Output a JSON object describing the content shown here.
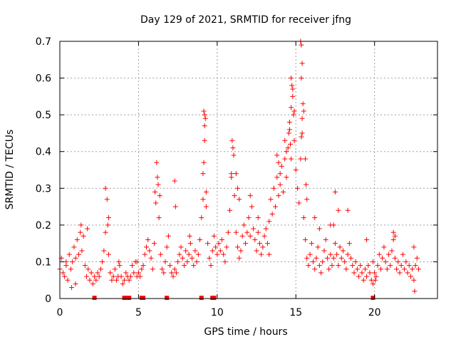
{
  "chart_data": {
    "type": "scatter",
    "title": "Day 129 of 2021, SRMTID for receiver jfng",
    "xlabel": "GPS time / hours",
    "ylabel": "SRMTID / TECUs",
    "xlim": [
      0,
      24
    ],
    "ylim": [
      0,
      0.7
    ],
    "x_ticks": [
      0,
      5,
      10,
      15,
      20
    ],
    "x_tick_labels": [
      "0",
      "5",
      "10",
      "15",
      "20"
    ],
    "y_ticks": [
      0,
      0.1,
      0.2,
      0.3,
      0.4,
      0.5,
      0.6,
      0.7
    ],
    "y_tick_labels": [
      "0",
      "0.1",
      "0.2",
      "0.3",
      "0.4",
      "0.5",
      "0.6",
      "0.7"
    ],
    "grid": true,
    "marker": "+",
    "series_color": "#ff0000",
    "x_step": 0.1,
    "series": [
      {
        "name": "SRMTID",
        "points": [
          [
            0.0,
            0.08
          ],
          [
            0.1,
            0.11
          ],
          [
            0.2,
            0.07
          ],
          [
            0.3,
            0.06
          ],
          [
            0.4,
            0.09
          ],
          [
            0.5,
            0.05
          ],
          [
            0.6,
            0.12
          ],
          [
            0.7,
            0.08
          ],
          [
            0.8,
            0.1
          ],
          [
            0.9,
            0.14
          ],
          [
            1.0,
            0.11
          ],
          [
            1.1,
            0.16
          ],
          [
            1.2,
            0.12
          ],
          [
            1.3,
            0.18
          ],
          [
            1.4,
            0.13
          ],
          [
            1.5,
            0.17
          ],
          [
            1.6,
            0.09
          ],
          [
            1.7,
            0.06
          ],
          [
            1.8,
            0.08
          ],
          [
            1.9,
            0.05
          ],
          [
            2.0,
            0.07
          ],
          [
            2.1,
            0.04
          ],
          [
            2.2,
            0.06
          ],
          [
            2.3,
            0.05
          ],
          [
            2.4,
            0.07
          ],
          [
            2.5,
            0.06
          ],
          [
            2.6,
            0.08
          ],
          [
            2.7,
            0.1
          ],
          [
            2.8,
            0.13
          ],
          [
            2.9,
            0.18
          ],
          [
            3.0,
            0.27
          ],
          [
            3.1,
            0.12
          ],
          [
            3.2,
            0.07
          ],
          [
            3.3,
            0.05
          ],
          [
            3.4,
            0.06
          ],
          [
            3.5,
            0.08
          ],
          [
            3.6,
            0.05
          ],
          [
            3.7,
            0.06
          ],
          [
            3.8,
            0.09
          ],
          [
            3.9,
            0.06
          ],
          [
            4.0,
            0.04
          ],
          [
            4.1,
            0.05
          ],
          [
            4.2,
            0.07
          ],
          [
            4.3,
            0.06
          ],
          [
            4.4,
            0.05
          ],
          [
            4.5,
            0.06
          ],
          [
            4.6,
            0.09
          ],
          [
            4.7,
            0.07
          ],
          [
            4.8,
            0.1
          ],
          [
            4.9,
            0.06
          ],
          [
            5.0,
            0.07
          ],
          [
            5.1,
            0.06
          ],
          [
            5.2,
            0.08
          ],
          [
            5.3,
            0.09
          ],
          [
            5.4,
            0.12
          ],
          [
            5.5,
            0.14
          ],
          [
            5.6,
            0.16
          ],
          [
            5.7,
            0.13
          ],
          [
            5.8,
            0.11
          ],
          [
            5.9,
            0.08
          ],
          [
            6.0,
            0.15
          ],
          [
            6.1,
            0.26
          ],
          [
            6.2,
            0.33
          ],
          [
            6.3,
            0.22
          ],
          [
            6.4,
            0.12
          ],
          [
            6.5,
            0.08
          ],
          [
            6.6,
            0.07
          ],
          [
            6.7,
            0.1
          ],
          [
            6.8,
            0.14
          ],
          [
            6.9,
            0.17
          ],
          [
            7.0,
            0.09
          ],
          [
            7.1,
            0.07
          ],
          [
            7.2,
            0.06
          ],
          [
            7.3,
            0.08
          ],
          [
            7.4,
            0.07
          ],
          [
            7.5,
            0.1
          ],
          [
            7.6,
            0.12
          ],
          [
            7.7,
            0.14
          ],
          [
            7.8,
            0.11
          ],
          [
            7.9,
            0.09
          ],
          [
            8.0,
            0.13
          ],
          [
            8.1,
            0.1
          ],
          [
            8.2,
            0.12
          ],
          [
            8.3,
            0.15
          ],
          [
            8.4,
            0.11
          ],
          [
            8.5,
            0.09
          ],
          [
            8.6,
            0.13
          ],
          [
            8.7,
            0.1
          ],
          [
            8.8,
            0.12
          ],
          [
            8.9,
            0.16
          ],
          [
            9.0,
            0.22
          ],
          [
            9.1,
            0.34
          ],
          [
            9.2,
            0.47
          ],
          [
            9.3,
            0.25
          ],
          [
            9.4,
            0.15
          ],
          [
            9.5,
            0.11
          ],
          [
            9.6,
            0.09
          ],
          [
            9.7,
            0.13
          ],
          [
            9.8,
            0.17
          ],
          [
            9.9,
            0.14
          ],
          [
            10.0,
            0.12
          ],
          [
            10.1,
            0.15
          ],
          [
            10.2,
            0.13
          ],
          [
            10.3,
            0.16
          ],
          [
            10.4,
            0.12
          ],
          [
            10.5,
            0.1
          ],
          [
            10.6,
            0.14
          ],
          [
            10.7,
            0.18
          ],
          [
            10.8,
            0.24
          ],
          [
            10.9,
            0.34
          ],
          [
            11.0,
            0.41
          ],
          [
            11.1,
            0.28
          ],
          [
            11.2,
            0.18
          ],
          [
            11.3,
            0.14
          ],
          [
            11.4,
            0.11
          ],
          [
            11.5,
            0.13
          ],
          [
            11.6,
            0.17
          ],
          [
            11.7,
            0.2
          ],
          [
            11.8,
            0.15
          ],
          [
            11.9,
            0.18
          ],
          [
            12.0,
            0.22
          ],
          [
            12.1,
            0.17
          ],
          [
            12.2,
            0.25
          ],
          [
            12.3,
            0.19
          ],
          [
            12.4,
            0.16
          ],
          [
            12.5,
            0.13
          ],
          [
            12.6,
            0.18
          ],
          [
            12.7,
            0.15
          ],
          [
            12.8,
            0.12
          ],
          [
            12.9,
            0.14
          ],
          [
            13.0,
            0.17
          ],
          [
            13.1,
            0.19
          ],
          [
            13.2,
            0.15
          ],
          [
            13.3,
            0.21
          ],
          [
            13.4,
            0.27
          ],
          [
            13.5,
            0.23
          ],
          [
            13.6,
            0.3
          ],
          [
            13.7,
            0.25
          ],
          [
            13.8,
            0.33
          ],
          [
            13.9,
            0.28
          ],
          [
            14.0,
            0.31
          ],
          [
            14.1,
            0.36
          ],
          [
            14.2,
            0.29
          ],
          [
            14.3,
            0.38
          ],
          [
            14.4,
            0.33
          ],
          [
            14.5,
            0.41
          ],
          [
            14.6,
            0.46
          ],
          [
            14.7,
            0.52
          ],
          [
            14.8,
            0.57
          ],
          [
            14.9,
            0.43
          ],
          [
            15.0,
            0.35
          ],
          [
            15.1,
            0.3
          ],
          [
            15.2,
            0.26
          ],
          [
            15.3,
            0.38
          ],
          [
            15.4,
            0.45
          ],
          [
            15.5,
            0.22
          ],
          [
            15.6,
            0.16
          ],
          [
            15.7,
            0.11
          ],
          [
            15.8,
            0.09
          ],
          [
            15.9,
            0.12
          ],
          [
            16.0,
            0.15
          ],
          [
            16.1,
            0.1
          ],
          [
            16.2,
            0.08
          ],
          [
            16.3,
            0.11
          ],
          [
            16.4,
            0.14
          ],
          [
            16.5,
            0.09
          ],
          [
            16.6,
            0.07
          ],
          [
            16.7,
            0.1
          ],
          [
            16.8,
            0.13
          ],
          [
            16.9,
            0.16
          ],
          [
            17.0,
            0.11
          ],
          [
            17.1,
            0.08
          ],
          [
            17.2,
            0.12
          ],
          [
            17.3,
            0.09
          ],
          [
            17.4,
            0.11
          ],
          [
            17.5,
            0.15
          ],
          [
            17.6,
            0.12
          ],
          [
            17.7,
            0.09
          ],
          [
            17.8,
            0.14
          ],
          [
            17.9,
            0.11
          ],
          [
            18.0,
            0.13
          ],
          [
            18.1,
            0.1
          ],
          [
            18.2,
            0.08
          ],
          [
            18.3,
            0.12
          ],
          [
            18.4,
            0.15
          ],
          [
            18.5,
            0.11
          ],
          [
            18.6,
            0.09
          ],
          [
            18.7,
            0.07
          ],
          [
            18.8,
            0.1
          ],
          [
            18.9,
            0.08
          ],
          [
            19.0,
            0.06
          ],
          [
            19.1,
            0.09
          ],
          [
            19.2,
            0.07
          ],
          [
            19.3,
            0.05
          ],
          [
            19.4,
            0.08
          ],
          [
            19.5,
            0.06
          ],
          [
            19.6,
            0.09
          ],
          [
            19.7,
            0.07
          ],
          [
            19.8,
            0.05
          ],
          [
            19.9,
            0.1
          ],
          [
            20.0,
            0.07
          ],
          [
            20.1,
            0.06
          ],
          [
            20.2,
            0.09
          ],
          [
            20.3,
            0.12
          ],
          [
            20.4,
            0.08
          ],
          [
            20.5,
            0.11
          ],
          [
            20.6,
            0.14
          ],
          [
            20.7,
            0.1
          ],
          [
            20.8,
            0.08
          ],
          [
            20.9,
            0.12
          ],
          [
            21.0,
            0.09
          ],
          [
            21.1,
            0.13
          ],
          [
            21.2,
            0.16
          ],
          [
            21.3,
            0.11
          ],
          [
            21.4,
            0.08
          ],
          [
            21.5,
            0.1
          ],
          [
            21.6,
            0.07
          ],
          [
            21.7,
            0.09
          ],
          [
            21.8,
            0.12
          ],
          [
            21.9,
            0.08
          ],
          [
            22.0,
            0.1
          ],
          [
            22.1,
            0.07
          ],
          [
            22.2,
            0.09
          ],
          [
            22.3,
            0.06
          ],
          [
            22.4,
            0.08
          ],
          [
            22.5,
            0.05
          ],
          [
            22.6,
            0.09
          ],
          [
            22.7,
            0.11
          ],
          [
            22.8,
            0.08
          ],
          [
            0.75,
            0.03
          ],
          [
            0.4,
            0.1
          ],
          [
            1.35,
            0.2
          ],
          [
            1.75,
            0.19
          ],
          [
            2.9,
            0.3
          ],
          [
            3.05,
            0.2
          ],
          [
            3.1,
            0.22
          ],
          [
            3.75,
            0.1
          ],
          [
            4.9,
            0.1
          ],
          [
            6.05,
            0.29
          ],
          [
            6.15,
            0.37
          ],
          [
            6.25,
            0.31
          ],
          [
            6.35,
            0.28
          ],
          [
            7.3,
            0.32
          ],
          [
            7.35,
            0.25
          ],
          [
            8.25,
            0.17
          ],
          [
            9.15,
            0.51
          ],
          [
            9.2,
            0.5
          ],
          [
            9.25,
            0.49
          ],
          [
            9.2,
            0.43
          ],
          [
            9.15,
            0.37
          ],
          [
            9.3,
            0.29
          ],
          [
            9.1,
            0.27
          ],
          [
            10.95,
            0.43
          ],
          [
            11.05,
            0.39
          ],
          [
            10.9,
            0.33
          ],
          [
            11.2,
            0.34
          ],
          [
            11.3,
            0.3
          ],
          [
            11.4,
            0.27
          ],
          [
            12.1,
            0.28
          ],
          [
            12.6,
            0.22
          ],
          [
            13.8,
            0.39
          ],
          [
            13.9,
            0.37
          ],
          [
            14.0,
            0.34
          ],
          [
            14.3,
            0.43
          ],
          [
            14.4,
            0.4
          ],
          [
            14.7,
            0.6
          ],
          [
            14.75,
            0.58
          ],
          [
            14.8,
            0.55
          ],
          [
            14.9,
            0.51
          ],
          [
            14.85,
            0.5
          ],
          [
            14.6,
            0.48
          ],
          [
            14.55,
            0.45
          ],
          [
            14.65,
            0.42
          ],
          [
            14.7,
            0.38
          ],
          [
            15.3,
            0.7
          ],
          [
            15.35,
            0.69
          ],
          [
            15.4,
            0.64
          ],
          [
            15.35,
            0.6
          ],
          [
            15.45,
            0.53
          ],
          [
            15.5,
            0.51
          ],
          [
            15.4,
            0.49
          ],
          [
            15.35,
            0.44
          ],
          [
            15.6,
            0.38
          ],
          [
            15.65,
            0.31
          ],
          [
            15.7,
            0.27
          ],
          [
            16.2,
            0.22
          ],
          [
            16.5,
            0.19
          ],
          [
            17.2,
            0.2
          ],
          [
            17.4,
            0.2
          ],
          [
            17.5,
            0.29
          ],
          [
            17.7,
            0.24
          ],
          [
            18.3,
            0.24
          ],
          [
            19.5,
            0.16
          ],
          [
            21.2,
            0.18
          ],
          [
            21.3,
            0.17
          ],
          [
            22.5,
            0.14
          ],
          [
            22.55,
            0.02
          ],
          [
            19.9,
            0.04
          ],
          [
            20.05,
            0.05
          ],
          [
            1.0,
            0.04
          ],
          [
            13.3,
            0.12
          ]
        ]
      }
    ],
    "ticks_at_zero": [
      2.2,
      4.1,
      4.2,
      4.3,
      4.4,
      5.2,
      5.3,
      6.8,
      9.0,
      9.7,
      9.8,
      19.9
    ]
  }
}
